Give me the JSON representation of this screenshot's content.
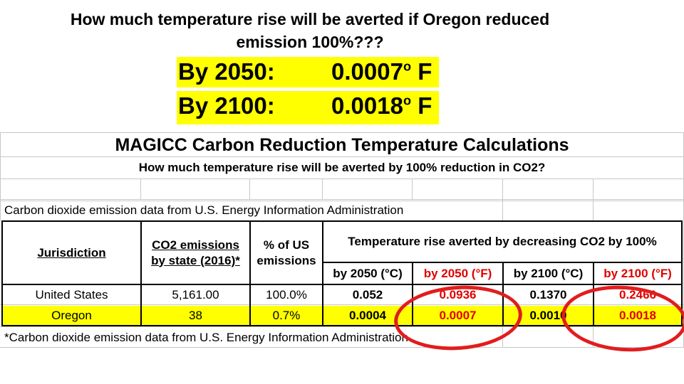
{
  "heading": {
    "line1": "How much temperature rise will be averted if Oregon reduced",
    "line2": "emission 100%???"
  },
  "highlights": [
    {
      "label": "By 2050:",
      "value": "0.0007",
      "unit": " F"
    },
    {
      "label": "By 2100:",
      "value": "0.0018",
      "unit": " F"
    }
  ],
  "degree_symbol": "o",
  "table": {
    "title": "MAGICC Carbon Reduction Temperature Calculations",
    "subtitle": "How much temperature rise will be averted by 100% reduction in CO2?",
    "source": "Carbon dioxide emission data from U.S. Energy Information Administration",
    "headers": {
      "jurisdiction": "Jurisdiction",
      "co2_line1": "CO2 emissions",
      "co2_line2": "by state (2016)*",
      "pct_line1": "% of US",
      "pct_line2": "emissions",
      "temp": "Temperature rise averted by decreasing CO2 by 100%",
      "sub_2050_c": "by 2050 (°C)",
      "sub_2050_f": "by 2050 (°F)",
      "sub_2100_c": "by 2100 (°C)",
      "sub_2100_f": "by 2100 (°F)"
    },
    "rows": [
      {
        "jurisdiction": "United States",
        "co2": "5,161.00",
        "pct": "100.0%",
        "c2050": "0.052",
        "f2050": "0.0936",
        "c2100": "0.1370",
        "f2100": "0.2466"
      },
      {
        "jurisdiction": "Oregon",
        "co2": "38",
        "pct": "0.7%",
        "c2050": "0.0004",
        "f2050": "0.0007",
        "c2100": "0.0010",
        "f2100": "0.0018"
      }
    ],
    "footnote": "*Carbon dioxide emission data from U.S. Energy Information Administration"
  },
  "colors": {
    "highlight": "#ffff00",
    "fahrenheit_text": "#e00000",
    "circle": "#e11d1d"
  }
}
